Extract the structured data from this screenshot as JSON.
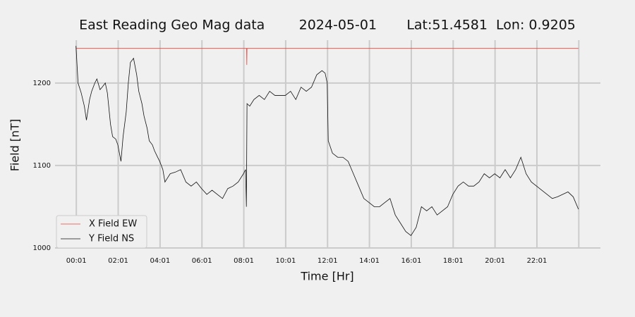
{
  "chart_data": {
    "type": "line",
    "title": "East Reading Geo Mag data        2024-05-01       Lat:51.4581  Lon: 0.9205",
    "xlabel": "Time  [Hr]",
    "ylabel": "Field  [nT]",
    "xlim": [
      -1.0,
      25.05
    ],
    "ylim": [
      1000,
      1252
    ],
    "xticks": [
      {
        "value": 0.0167,
        "label": "00:01"
      },
      {
        "value": 2.0167,
        "label": "02:01"
      },
      {
        "value": 4.0167,
        "label": "04:01"
      },
      {
        "value": 6.0167,
        "label": "06:01"
      },
      {
        "value": 8.0167,
        "label": "08:01"
      },
      {
        "value": 10.0167,
        "label": "10:01"
      },
      {
        "value": 12.0167,
        "label": "12:01"
      },
      {
        "value": 14.0167,
        "label": "14:01"
      },
      {
        "value": 16.0167,
        "label": "16:01"
      },
      {
        "value": 18.0167,
        "label": "18:01"
      },
      {
        "value": 20.0167,
        "label": "20:01"
      },
      {
        "value": 22.0167,
        "label": "22:01"
      },
      {
        "value": 24.0167,
        "label": null
      }
    ],
    "yticks": [
      1000,
      1100,
      1200
    ],
    "grid": true,
    "legend": "lower left",
    "series": [
      {
        "name": "X Field EW",
        "color": "#e8423b",
        "x": [
          0,
          8.15,
          8.16,
          8.17,
          24
        ],
        "values": [
          1242,
          1242,
          1222,
          1242,
          1242
        ]
      },
      {
        "name": "Y Field NS",
        "color": "#111111",
        "x": [
          0,
          0.1,
          0.25,
          0.4,
          0.5,
          0.65,
          0.75,
          0.9,
          1.0,
          1.15,
          1.25,
          1.4,
          1.5,
          1.65,
          1.75,
          1.9,
          2.0,
          2.15,
          2.25,
          2.4,
          2.5,
          2.6,
          2.75,
          2.9,
          3.0,
          3.15,
          3.25,
          3.4,
          3.5,
          3.65,
          3.75,
          3.9,
          4.0,
          4.15,
          4.25,
          4.5,
          4.75,
          5.0,
          5.25,
          5.5,
          5.75,
          6.0,
          6.25,
          6.5,
          6.75,
          7.0,
          7.25,
          7.5,
          7.75,
          8.0,
          8.1,
          8.14,
          8.17,
          8.3,
          8.5,
          8.75,
          9.0,
          9.25,
          9.5,
          9.75,
          10.0,
          10.25,
          10.5,
          10.75,
          11.0,
          11.25,
          11.5,
          11.75,
          11.9,
          12.0,
          12.05,
          12.25,
          12.5,
          12.75,
          13.0,
          13.25,
          13.5,
          13.75,
          14.0,
          14.25,
          14.5,
          14.75,
          15.0,
          15.25,
          15.5,
          15.75,
          16.0,
          16.25,
          16.5,
          16.75,
          17.0,
          17.25,
          17.5,
          17.75,
          18.0,
          18.25,
          18.5,
          18.75,
          19.0,
          19.25,
          19.5,
          19.75,
          20.0,
          20.25,
          20.5,
          20.75,
          21.0,
          21.25,
          21.5,
          21.75,
          22.0,
          22.25,
          22.5,
          22.75,
          23.0,
          23.25,
          23.5,
          23.75,
          24.0
        ],
        "values": [
          1245,
          1200,
          1188,
          1172,
          1155,
          1180,
          1190,
          1200,
          1205,
          1192,
          1195,
          1200,
          1188,
          1150,
          1135,
          1132,
          1125,
          1105,
          1135,
          1165,
          1200,
          1225,
          1230,
          1210,
          1190,
          1175,
          1160,
          1145,
          1130,
          1125,
          1118,
          1110,
          1105,
          1095,
          1080,
          1090,
          1092,
          1095,
          1080,
          1075,
          1080,
          1072,
          1065,
          1070,
          1065,
          1060,
          1072,
          1075,
          1080,
          1090,
          1095,
          1050,
          1175,
          1172,
          1180,
          1185,
          1180,
          1190,
          1185,
          1185,
          1185,
          1190,
          1180,
          1195,
          1190,
          1195,
          1210,
          1215,
          1212,
          1200,
          1130,
          1115,
          1110,
          1110,
          1105,
          1090,
          1075,
          1060,
          1055,
          1050,
          1050,
          1055,
          1060,
          1040,
          1030,
          1020,
          1015,
          1025,
          1050,
          1045,
          1050,
          1040,
          1045,
          1050,
          1065,
          1075,
          1080,
          1075,
          1075,
          1080,
          1090,
          1085,
          1090,
          1085,
          1095,
          1085,
          1095,
          1110,
          1090,
          1080,
          1075,
          1070,
          1065,
          1060,
          1062,
          1065,
          1068,
          1062,
          1047
        ]
      }
    ]
  }
}
